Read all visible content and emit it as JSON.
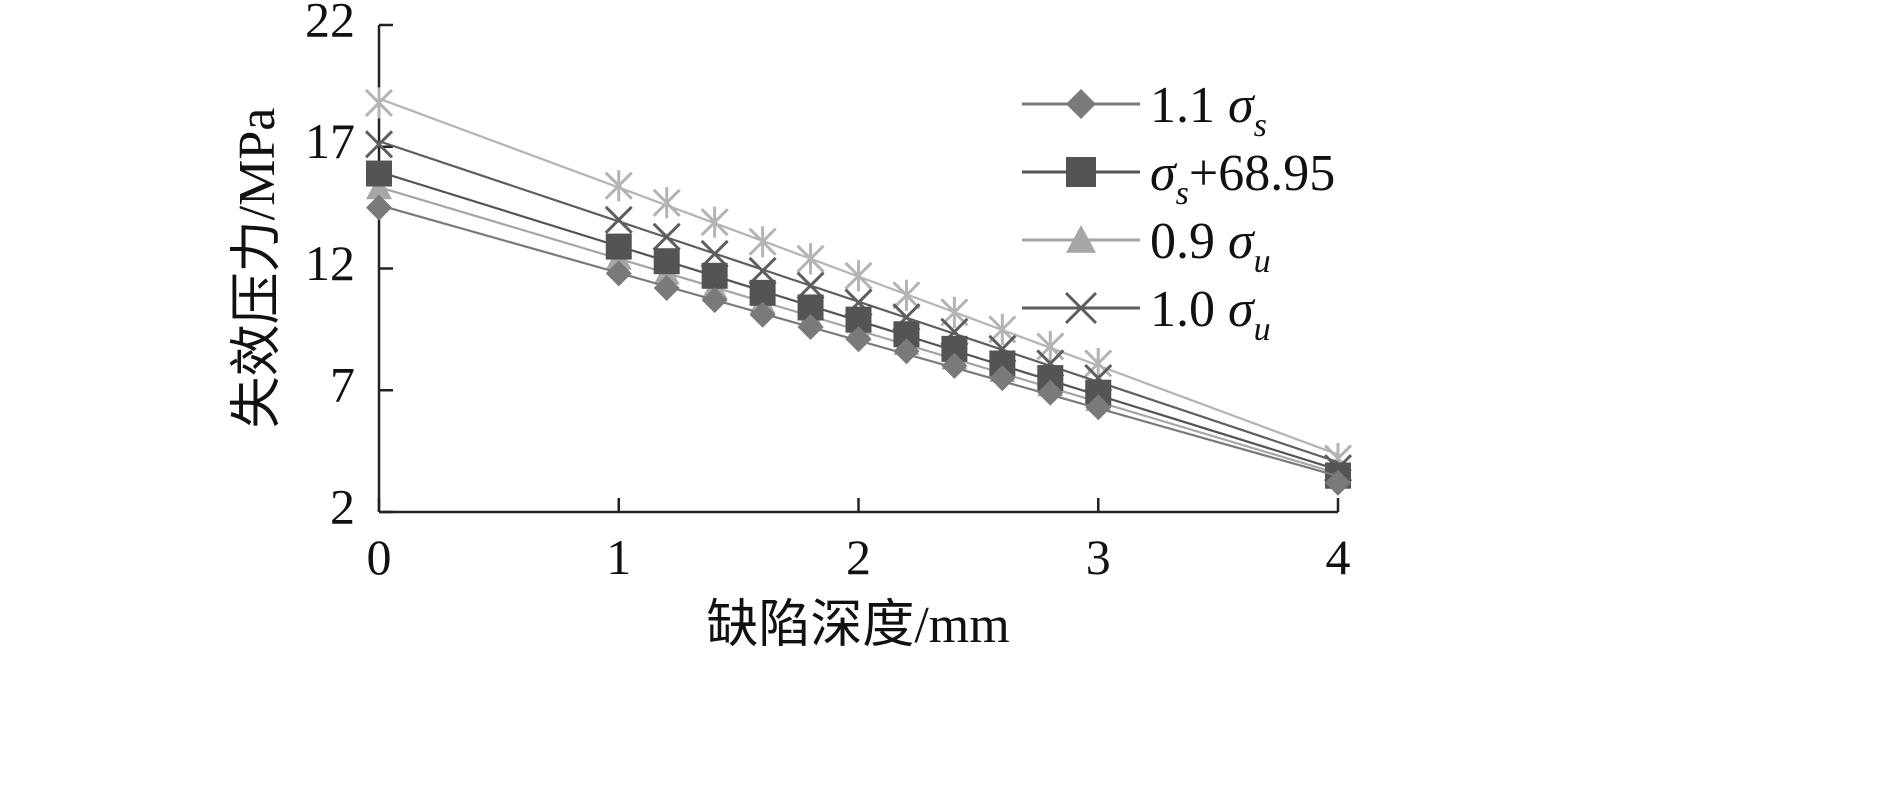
{
  "chart_data": {
    "type": "line",
    "xlabel": "缺陷深度/mm",
    "ylabel": "失效压力/MPa",
    "xlim": [
      0,
      4
    ],
    "ylim": [
      2,
      22
    ],
    "xticks": [
      "0",
      "1",
      "2",
      "3",
      "4"
    ],
    "yticks": [
      "2",
      "7",
      "12",
      "17",
      "22"
    ],
    "grid": false,
    "legend_position": "top-right",
    "x": [
      0,
      1.0,
      1.2,
      1.4,
      1.6,
      1.8,
      2.0,
      2.2,
      2.4,
      2.6,
      2.8,
      3.0,
      4.0
    ],
    "series": [
      {
        "name": "1.1 σs",
        "legend": {
          "pre": "1.1 ",
          "sym": "σ",
          "sub": "s",
          "post": ""
        },
        "marker": "diamond",
        "color": "#7a7a7a",
        "values": [
          14.5,
          11.8,
          11.2,
          10.7,
          10.1,
          9.6,
          9.1,
          8.6,
          8.0,
          7.5,
          6.9,
          6.3,
          3.2
        ]
      },
      {
        "name": "σs+68.95",
        "legend": {
          "pre": "",
          "sym": "σ",
          "sub": "s",
          "post": "+68.95"
        },
        "marker": "square",
        "color": "#545454",
        "values": [
          15.9,
          12.9,
          12.3,
          11.7,
          11.0,
          10.4,
          9.9,
          9.3,
          8.7,
          8.1,
          7.5,
          6.9,
          3.5
        ]
      },
      {
        "name": "0.9 σu",
        "legend": {
          "pre": "0.9 ",
          "sym": "σ",
          "sub": "u",
          "post": ""
        },
        "marker": "triangle",
        "color": "#a6a6a6",
        "values": [
          15.3,
          12.4,
          11.8,
          11.2,
          10.6,
          10.0,
          9.5,
          8.9,
          8.3,
          7.8,
          7.2,
          6.6,
          3.4
        ]
      },
      {
        "name": "1.0 σu",
        "legend": {
          "pre": "1.0 ",
          "sym": "σ",
          "sub": "u",
          "post": ""
        },
        "marker": "x",
        "color": "#5e5e5e",
        "values": [
          17.1,
          14.0,
          13.3,
          12.6,
          11.9,
          11.3,
          10.6,
          10.0,
          9.4,
          8.7,
          8.1,
          7.5,
          3.8
        ]
      },
      {
        "name": "",
        "marker": "star",
        "color": "#b4b4b4",
        "values": [
          18.8,
          15.4,
          14.7,
          13.9,
          13.1,
          12.4,
          11.7,
          10.9,
          10.2,
          9.5,
          8.8,
          8.1,
          4.2
        ]
      }
    ]
  }
}
